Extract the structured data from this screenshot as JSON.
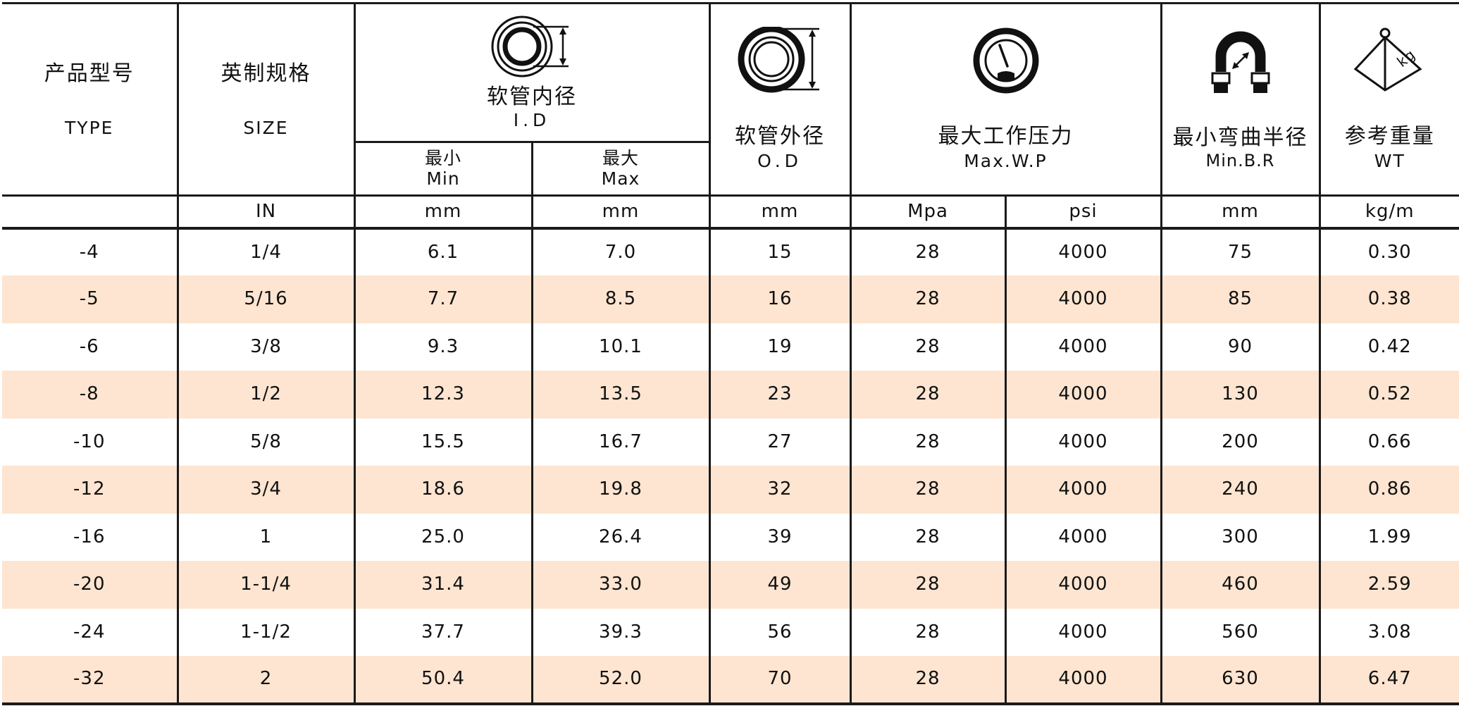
{
  "header": {
    "type": {
      "cn": "产品型号",
      "en": "TYPE"
    },
    "size": {
      "cn": "英制规格",
      "en": "SIZE",
      "unit": "IN"
    },
    "id": {
      "cn": "软管内径",
      "en": "I.D",
      "min": {
        "cn": "最小",
        "en": "Min",
        "unit": "mm"
      },
      "max": {
        "cn": "最大",
        "en": "Max",
        "unit": "mm"
      },
      "icon": "hose-inner-diameter-icon"
    },
    "od": {
      "cn": "软管外径",
      "en": "O.D",
      "unit": "mm",
      "icon": "hose-outer-diameter-icon"
    },
    "wp": {
      "cn": "最大工作压力",
      "en": "Max.W.P",
      "unit_mpa": "Mpa",
      "unit_psi": "psi",
      "icon": "pressure-gauge-icon"
    },
    "br": {
      "cn": "最小弯曲半径",
      "en": "Min.B.R",
      "unit": "mm",
      "icon": "bend-radius-icon"
    },
    "wt": {
      "cn": "参考重量",
      "en": "WT",
      "unit": "kg/m",
      "icon": "weight-icon",
      "icon_label": "kg"
    }
  },
  "rows": [
    {
      "type": "-4",
      "size": "1/4",
      "id_min": "6.1",
      "id_max": "7.0",
      "od": "15",
      "mpa": "28",
      "psi": "4000",
      "br": "75",
      "wt": "0.30"
    },
    {
      "type": "-5",
      "size": "5/16",
      "id_min": "7.7",
      "id_max": "8.5",
      "od": "16",
      "mpa": "28",
      "psi": "4000",
      "br": "85",
      "wt": "0.38"
    },
    {
      "type": "-6",
      "size": "3/8",
      "id_min": "9.3",
      "id_max": "10.1",
      "od": "19",
      "mpa": "28",
      "psi": "4000",
      "br": "90",
      "wt": "0.42"
    },
    {
      "type": "-8",
      "size": "1/2",
      "id_min": "12.3",
      "id_max": "13.5",
      "od": "23",
      "mpa": "28",
      "psi": "4000",
      "br": "130",
      "wt": "0.52"
    },
    {
      "type": "-10",
      "size": "5/8",
      "id_min": "15.5",
      "id_max": "16.7",
      "od": "27",
      "mpa": "28",
      "psi": "4000",
      "br": "200",
      "wt": "0.66"
    },
    {
      "type": "-12",
      "size": "3/4",
      "id_min": "18.6",
      "id_max": "19.8",
      "od": "32",
      "mpa": "28",
      "psi": "4000",
      "br": "240",
      "wt": "0.86"
    },
    {
      "type": "-16",
      "size": "1",
      "id_min": "25.0",
      "id_max": "26.4",
      "od": "39",
      "mpa": "28",
      "psi": "4000",
      "br": "300",
      "wt": "1.99"
    },
    {
      "type": "-20",
      "size": "1-1/4",
      "id_min": "31.4",
      "id_max": "33.0",
      "od": "49",
      "mpa": "28",
      "psi": "4000",
      "br": "460",
      "wt": "2.59"
    },
    {
      "type": "-24",
      "size": "1-1/2",
      "id_min": "37.7",
      "id_max": "39.3",
      "od": "56",
      "mpa": "28",
      "psi": "4000",
      "br": "560",
      "wt": "3.08"
    },
    {
      "type": "-32",
      "size": "2",
      "id_min": "50.4",
      "id_max": "52.0",
      "od": "70",
      "mpa": "28",
      "psi": "4000",
      "br": "630",
      "wt": "6.47"
    }
  ],
  "colors": {
    "row_shade": "#fde5d1",
    "border": "#1a1a1a",
    "text": "#111111"
  }
}
